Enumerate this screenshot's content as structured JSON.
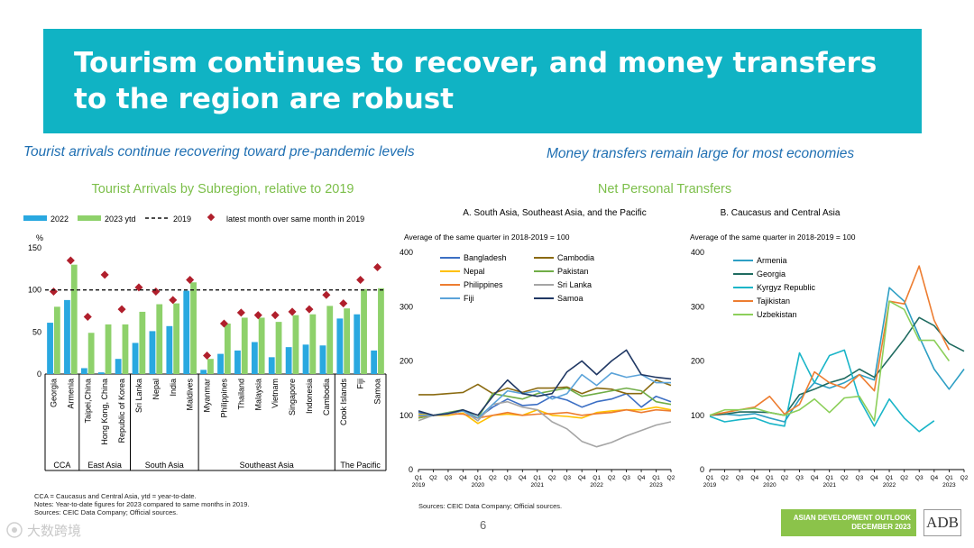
{
  "banner": {
    "title": "Tourism continues to recover, and money transfers to the region are robust"
  },
  "left": {
    "subtitle": "Tourist arrivals continue recovering toward pre-pandemic levels",
    "notes": [
      "CCA = Caucasus and Central Asia, ytd = year-to-date.",
      "Notes: Year-to-date figures for 2023 compared to same months in 2019.",
      "Sources: CEIC Data Company; Official sources."
    ]
  },
  "right": {
    "subtitle": "Money transfers remain large for most economies",
    "title": "Net Personal Transfers",
    "source": "Sources: CEIC Data Company; Official sources."
  },
  "footer": {
    "page": "6",
    "adb_line1": "ASIAN DEVELOPMENT OUTLOOK",
    "adb_line2": "DECEMBER 2023",
    "adb_logo": "ADB",
    "watermark": "大数跨境"
  },
  "chart_data": [
    {
      "type": "bar",
      "title": "Tourist Arrivals by Subregion, relative to 2019",
      "ylabel": "%",
      "ylim": [
        0,
        150
      ],
      "yticks": [
        0,
        50,
        100,
        150
      ],
      "reference_line": {
        "name": "2019",
        "value": 100
      },
      "categories": [
        "Georgia",
        "Armenia",
        "Taipei,China",
        "Hong Kong, China",
        "Republic of Korea",
        "Sri Lanka",
        "Nepal",
        "India",
        "Maldives",
        "Myanmar",
        "Philippines",
        "Thailand",
        "Malaysia",
        "Vietnam",
        "Singapore",
        "Indonesia",
        "Cambodia",
        "Cook Islands",
        "Fiji",
        "Samoa"
      ],
      "groups": [
        {
          "label": "CCA",
          "start": 0,
          "end": 1
        },
        {
          "label": "East Asia",
          "start": 2,
          "end": 4
        },
        {
          "label": "South Asia",
          "start": 5,
          "end": 8
        },
        {
          "label": "Southeast Asia",
          "start": 9,
          "end": 16
        },
        {
          "label": "The Pacific",
          "start": 17,
          "end": 19
        }
      ],
      "series": [
        {
          "name": "2022",
          "color": "#29a8e0",
          "values": [
            61,
            88,
            7,
            2,
            18,
            37,
            51,
            57,
            99,
            5,
            24,
            28,
            38,
            20,
            32,
            35,
            34,
            66,
            71,
            28
          ]
        },
        {
          "name": "2023 ytd",
          "color": "#8ed16b",
          "values": [
            80,
            130,
            49,
            59,
            59,
            74,
            83,
            84,
            109,
            18,
            60,
            67,
            67,
            62,
            70,
            71,
            81,
            78,
            101,
            102
          ]
        },
        {
          "name": "latest month over same month in 2019",
          "color": "#b01f2c",
          "values": [
            98,
            135,
            68,
            118,
            77,
            103,
            98,
            88,
            112,
            22,
            60,
            73,
            70,
            70,
            74,
            77,
            94,
            84,
            112,
            127
          ]
        }
      ]
    },
    {
      "type": "line",
      "title": "A. South Asia, Southeast Asia, and the Pacific",
      "annotation": "Average of the same quarter in 2018-2019 = 100",
      "ylim": [
        0,
        400
      ],
      "yticks": [
        0,
        100,
        200,
        300,
        400
      ],
      "x": [
        "Q1",
        "Q2",
        "Q3",
        "Q4",
        "Q1",
        "Q2",
        "Q3",
        "Q4",
        "Q1",
        "Q2",
        "Q3",
        "Q4",
        "Q1",
        "Q2",
        "Q3",
        "Q4",
        "Q1",
        "Q2"
      ],
      "years": [
        {
          "label": "2019",
          "index": 0
        },
        {
          "label": "2020",
          "index": 4
        },
        {
          "label": "2021",
          "index": 8
        },
        {
          "label": "2022",
          "index": 12
        },
        {
          "label": "2023",
          "index": 16
        }
      ],
      "series": [
        {
          "name": "Bangladesh",
          "color": "#3c6fc4",
          "values": [
            105,
            100,
            102,
            108,
            95,
            115,
            130,
            118,
            120,
            135,
            128,
            115,
            125,
            130,
            140,
            115,
            135,
            125
          ]
        },
        {
          "name": "Cambodia",
          "color": "#8a6a10",
          "values": [
            138,
            138,
            140,
            142,
            157,
            140,
            150,
            142,
            150,
            150,
            152,
            140,
            150,
            148,
            140,
            140,
            165,
            155
          ]
        },
        {
          "name": "Nepal",
          "color": "#ffc000",
          "values": [
            102,
            100,
            100,
            104,
            85,
            100,
            102,
            100,
            110,
            100,
            98,
            95,
            105,
            108,
            110,
            110,
            115,
            110
          ]
        },
        {
          "name": "Pakistan",
          "color": "#70ad47",
          "values": [
            95,
            100,
            105,
            110,
            95,
            140,
            135,
            130,
            140,
            145,
            150,
            135,
            140,
            145,
            150,
            145,
            125,
            120
          ]
        },
        {
          "name": "Philippines",
          "color": "#ed7d31",
          "values": [
            98,
            100,
            103,
            102,
            95,
            100,
            105,
            100,
            102,
            103,
            105,
            100,
            103,
            105,
            110,
            105,
            110,
            108
          ]
        },
        {
          "name": "Sri Lanka",
          "color": "#a5a5a5",
          "values": [
            90,
            100,
            102,
            108,
            90,
            120,
            125,
            115,
            110,
            88,
            75,
            52,
            42,
            50,
            62,
            72,
            82,
            88
          ]
        },
        {
          "name": "Fiji",
          "color": "#5ba3d9",
          "values": [
            100,
            100,
            104,
            108,
            95,
            120,
            145,
            140,
            145,
            130,
            140,
            175,
            155,
            178,
            170,
            175,
            160,
            160
          ]
        },
        {
          "name": "Samoa",
          "color": "#203864",
          "values": [
            108,
            100,
            103,
            110,
            100,
            135,
            165,
            140,
            135,
            140,
            180,
            200,
            175,
            200,
            220,
            175,
            170,
            167
          ]
        }
      ]
    },
    {
      "type": "line",
      "title": "B. Caucasus and Central Asia",
      "annotation": "Average of the same quarter in 2018-2019 = 100",
      "ylim": [
        0,
        400
      ],
      "yticks": [
        0,
        100,
        200,
        300,
        400
      ],
      "x": [
        "Q1",
        "Q2",
        "Q3",
        "Q4",
        "Q1",
        "Q2",
        "Q3",
        "Q4",
        "Q1",
        "Q2",
        "Q3",
        "Q4",
        "Q1",
        "Q2",
        "Q3",
        "Q4",
        "Q1",
        "Q2"
      ],
      "years": [
        {
          "label": "2019",
          "index": 0
        },
        {
          "label": "2020",
          "index": 4
        },
        {
          "label": "2021",
          "index": 8
        },
        {
          "label": "2022",
          "index": 12
        },
        {
          "label": "2023",
          "index": 16
        }
      ],
      "series": [
        {
          "name": "Armenia",
          "color": "#2e9fc4",
          "values": [
            100,
            102,
            100,
            103,
            95,
            88,
            130,
            160,
            150,
            160,
            175,
            165,
            335,
            310,
            245,
            185,
            148,
            185
          ]
        },
        {
          "name": "Georgia",
          "color": "#1f6b60",
          "values": [
            100,
            102,
            106,
            106,
            105,
            100,
            138,
            148,
            160,
            168,
            185,
            170,
            205,
            240,
            280,
            265,
            232,
            218
          ]
        },
        {
          "name": "Kyrgyz Republic",
          "color": "#19b5c8",
          "values": [
            98,
            88,
            92,
            95,
            85,
            80,
            215,
            160,
            210,
            220,
            130,
            80,
            130,
            95,
            70,
            90,
            null,
            null
          ]
        },
        {
          "name": "Tajikistan",
          "color": "#ed7d31",
          "values": [
            100,
            105,
            110,
            115,
            135,
            102,
            120,
            180,
            160,
            150,
            175,
            145,
            310,
            305,
            375,
            275,
            220,
            null
          ]
        },
        {
          "name": "Uzbekistan",
          "color": "#8ccf5a",
          "values": [
            100,
            110,
            110,
            113,
            105,
            100,
            110,
            130,
            105,
            132,
            135,
            90,
            310,
            295,
            238,
            238,
            200,
            null
          ]
        }
      ]
    }
  ]
}
